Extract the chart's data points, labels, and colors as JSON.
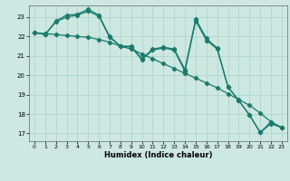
{
  "xlabel": "Humidex (Indice chaleur)",
  "bg_color": "#cce8e0",
  "grid_color": "#b0d4cc",
  "line_color": "#1a7a6e",
  "xlim": [
    -0.5,
    23.5
  ],
  "ylim": [
    16.6,
    23.6
  ],
  "yticks": [
    17,
    18,
    19,
    20,
    21,
    22,
    23
  ],
  "xticks": [
    0,
    1,
    2,
    3,
    4,
    5,
    6,
    7,
    8,
    9,
    10,
    11,
    12,
    13,
    14,
    15,
    16,
    17,
    18,
    19,
    20,
    21,
    22,
    23
  ],
  "line1_y": [
    22.2,
    22.1,
    22.8,
    23.1,
    23.15,
    23.4,
    23.1,
    22.0,
    21.5,
    21.5,
    20.85,
    21.35,
    21.45,
    21.35,
    20.3,
    22.9,
    21.9,
    21.4,
    19.4,
    18.7,
    17.95,
    17.05,
    17.6,
    17.3
  ],
  "line2_y": [
    22.2,
    22.15,
    22.1,
    22.05,
    22.0,
    21.95,
    21.85,
    21.7,
    21.5,
    21.35,
    21.1,
    20.85,
    20.6,
    20.35,
    20.1,
    19.85,
    19.6,
    19.35,
    19.05,
    18.75,
    18.45,
    18.05,
    17.6,
    17.3
  ],
  "line3_y": [
    22.2,
    22.1,
    22.75,
    23.0,
    23.1,
    23.3,
    23.05,
    21.95,
    21.5,
    21.45,
    20.8,
    21.3,
    21.4,
    21.3,
    20.2,
    22.8,
    21.8,
    21.35,
    19.4,
    18.7,
    17.95,
    17.05,
    17.5,
    17.3
  ]
}
